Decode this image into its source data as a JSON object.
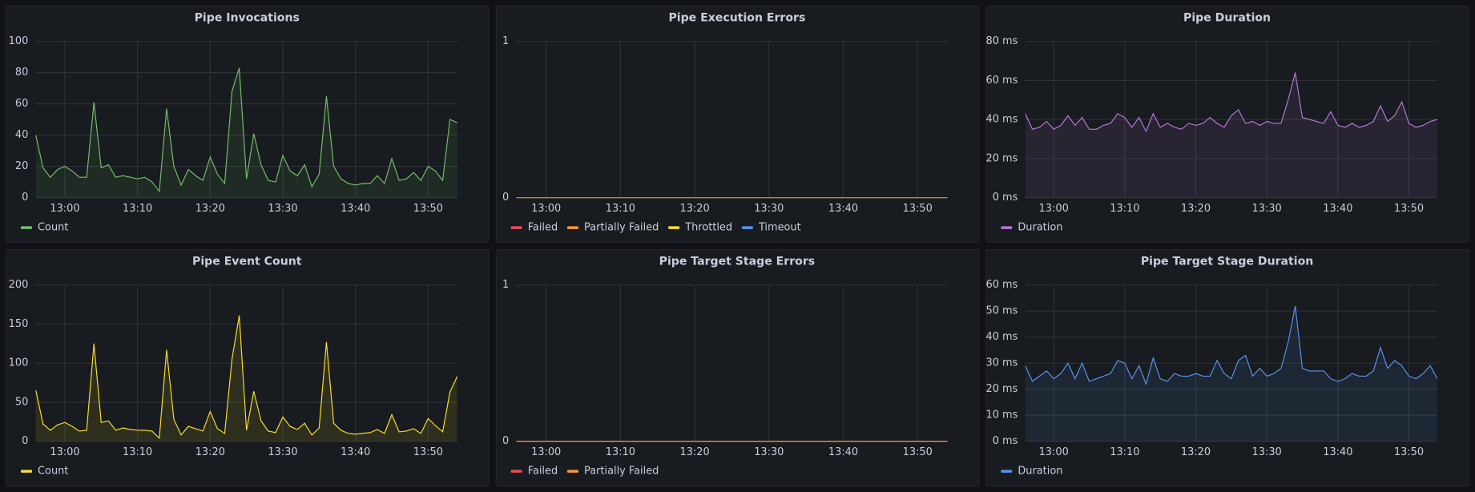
{
  "chart_data": [
    {
      "type": "line",
      "title": "Pipe Invocations",
      "x": [
        "12:56",
        "12:57",
        "12:58",
        "12:59",
        "13:00",
        "13:01",
        "13:02",
        "13:03",
        "13:04",
        "13:05",
        "13:06",
        "13:07",
        "13:08",
        "13:09",
        "13:10",
        "13:11",
        "13:12",
        "13:13",
        "13:14",
        "13:15",
        "13:16",
        "13:17",
        "13:18",
        "13:19",
        "13:20",
        "13:21",
        "13:22",
        "13:23",
        "13:24",
        "13:25",
        "13:26",
        "13:27",
        "13:28",
        "13:29",
        "13:30",
        "13:31",
        "13:32",
        "13:33",
        "13:34",
        "13:35",
        "13:36",
        "13:37",
        "13:38",
        "13:39",
        "13:40",
        "13:41",
        "13:42",
        "13:43",
        "13:44",
        "13:45",
        "13:46",
        "13:47",
        "13:48",
        "13:49",
        "13:50",
        "13:51",
        "13:52",
        "13:53",
        "13:54"
      ],
      "xlim": [
        "12:56",
        "13:54"
      ],
      "xticks": [
        "13:00",
        "13:10",
        "13:20",
        "13:30",
        "13:40",
        "13:50"
      ],
      "ylim": [
        0,
        100
      ],
      "yticks": [
        0,
        20,
        40,
        60,
        80,
        100
      ],
      "grid": true,
      "legend": "bottom-left",
      "series": [
        {
          "name": "Count",
          "color": "#73bf69",
          "values": [
            40,
            19,
            13,
            18,
            20,
            17,
            13,
            13,
            61,
            19,
            21,
            13,
            14,
            13,
            12,
            13,
            10,
            4,
            57,
            20,
            8,
            18,
            14,
            11,
            26,
            15,
            9,
            68,
            83,
            12,
            41,
            21,
            11,
            10,
            27,
            17,
            14,
            21,
            7,
            15,
            65,
            20,
            12,
            9,
            8,
            9,
            9,
            14,
            9,
            25,
            11,
            12,
            16,
            11,
            20,
            17,
            11,
            50,
            48
          ]
        }
      ]
    },
    {
      "type": "line",
      "title": "Pipe Execution Errors",
      "x": [
        "12:56",
        "12:57",
        "12:58",
        "12:59",
        "13:00",
        "13:01",
        "13:02",
        "13:03",
        "13:04",
        "13:05",
        "13:06",
        "13:07",
        "13:08",
        "13:09",
        "13:10",
        "13:11",
        "13:12",
        "13:13",
        "13:14",
        "13:15",
        "13:16",
        "13:17",
        "13:18",
        "13:19",
        "13:20",
        "13:21",
        "13:22",
        "13:23",
        "13:24",
        "13:25",
        "13:26",
        "13:27",
        "13:28",
        "13:29",
        "13:30",
        "13:31",
        "13:32",
        "13:33",
        "13:34",
        "13:35",
        "13:36",
        "13:37",
        "13:38",
        "13:39",
        "13:40",
        "13:41",
        "13:42",
        "13:43",
        "13:44",
        "13:45",
        "13:46",
        "13:47",
        "13:48",
        "13:49",
        "13:50",
        "13:51",
        "13:52",
        "13:53",
        "13:54"
      ],
      "xlim": [
        "12:56",
        "13:54"
      ],
      "xticks": [
        "13:00",
        "13:10",
        "13:20",
        "13:30",
        "13:40",
        "13:50"
      ],
      "ylim": [
        0,
        1
      ],
      "yticks": [
        0,
        1
      ],
      "grid": true,
      "legend": "bottom-left",
      "series": [
        {
          "name": "Failed",
          "color": "#f2495c",
          "values": [
            0,
            0,
            0,
            0,
            0,
            0,
            0,
            0,
            0,
            0,
            0,
            0,
            0,
            0,
            0,
            0,
            0,
            0,
            0,
            0,
            0,
            0,
            0,
            0,
            0,
            0,
            0,
            0,
            0,
            0,
            0,
            0,
            0,
            0,
            0,
            0,
            0,
            0,
            0,
            0,
            0,
            0,
            0,
            0,
            0,
            0,
            0,
            0,
            0,
            0,
            0,
            0,
            0,
            0,
            0,
            0,
            0,
            0,
            0
          ]
        },
        {
          "name": "Partially Failed",
          "color": "#ff9830",
          "values": [
            0,
            0,
            0,
            0,
            0,
            0,
            0,
            0,
            0,
            0,
            0,
            0,
            0,
            0,
            0,
            0,
            0,
            0,
            0,
            0,
            0,
            0,
            0,
            0,
            0,
            0,
            0,
            0,
            0,
            0,
            0,
            0,
            0,
            0,
            0,
            0,
            0,
            0,
            0,
            0,
            0,
            0,
            0,
            0,
            0,
            0,
            0,
            0,
            0,
            0,
            0,
            0,
            0,
            0,
            0,
            0,
            0,
            0,
            0
          ]
        },
        {
          "name": "Throttled",
          "color": "#fade2a",
          "values": [
            0,
            0,
            0,
            0,
            0,
            0,
            0,
            0,
            0,
            0,
            0,
            0,
            0,
            0,
            0,
            0,
            0,
            0,
            0,
            0,
            0,
            0,
            0,
            0,
            0,
            0,
            0,
            0,
            0,
            0,
            0,
            0,
            0,
            0,
            0,
            0,
            0,
            0,
            0,
            0,
            0,
            0,
            0,
            0,
            0,
            0,
            0,
            0,
            0,
            0,
            0,
            0,
            0,
            0,
            0,
            0,
            0,
            0,
            0
          ]
        },
        {
          "name": "Timeout",
          "color": "#5794f2",
          "values": [
            0,
            0,
            0,
            0,
            0,
            0,
            0,
            0,
            0,
            0,
            0,
            0,
            0,
            0,
            0,
            0,
            0,
            0,
            0,
            0,
            0,
            0,
            0,
            0,
            0,
            0,
            0,
            0,
            0,
            0,
            0,
            0,
            0,
            0,
            0,
            0,
            0,
            0,
            0,
            0,
            0,
            0,
            0,
            0,
            0,
            0,
            0,
            0,
            0,
            0,
            0,
            0,
            0,
            0,
            0,
            0,
            0,
            0,
            0
          ]
        }
      ]
    },
    {
      "type": "line",
      "title": "Pipe Duration",
      "x": [
        "12:56",
        "12:57",
        "12:58",
        "12:59",
        "13:00",
        "13:01",
        "13:02",
        "13:03",
        "13:04",
        "13:05",
        "13:06",
        "13:07",
        "13:08",
        "13:09",
        "13:10",
        "13:11",
        "13:12",
        "13:13",
        "13:14",
        "13:15",
        "13:16",
        "13:17",
        "13:18",
        "13:19",
        "13:20",
        "13:21",
        "13:22",
        "13:23",
        "13:24",
        "13:25",
        "13:26",
        "13:27",
        "13:28",
        "13:29",
        "13:30",
        "13:31",
        "13:32",
        "13:33",
        "13:34",
        "13:35",
        "13:36",
        "13:37",
        "13:38",
        "13:39",
        "13:40",
        "13:41",
        "13:42",
        "13:43",
        "13:44",
        "13:45",
        "13:46",
        "13:47",
        "13:48",
        "13:49",
        "13:50",
        "13:51",
        "13:52",
        "13:53",
        "13:54"
      ],
      "xlim": [
        "12:56",
        "13:54"
      ],
      "xticks": [
        "13:00",
        "13:10",
        "13:20",
        "13:30",
        "13:40",
        "13:50"
      ],
      "ylim": [
        0,
        80
      ],
      "yticks": [
        {
          "value": 0,
          "label": "0 ms"
        },
        {
          "value": 20,
          "label": "20 ms"
        },
        {
          "value": 40,
          "label": "40 ms"
        },
        {
          "value": 60,
          "label": "60 ms"
        },
        {
          "value": 80,
          "label": "80 ms"
        }
      ],
      "grid": true,
      "legend": "bottom-left",
      "series": [
        {
          "name": "Duration",
          "color": "#b877d9",
          "values": [
            43,
            35,
            36,
            39,
            35,
            37,
            42,
            37,
            41,
            35,
            35,
            37,
            38,
            43,
            41,
            36,
            41,
            34,
            43,
            36,
            38,
            36,
            35,
            38,
            37,
            38,
            41,
            38,
            36,
            42,
            45,
            38,
            39,
            37,
            39,
            38,
            38,
            50,
            64,
            41,
            40,
            39,
            38,
            44,
            37,
            36,
            38,
            36,
            37,
            39,
            47,
            39,
            42,
            49,
            38,
            36,
            37,
            39,
            40
          ]
        }
      ]
    },
    {
      "type": "line",
      "title": "Pipe Event Count",
      "x": [
        "12:56",
        "12:57",
        "12:58",
        "12:59",
        "13:00",
        "13:01",
        "13:02",
        "13:03",
        "13:04",
        "13:05",
        "13:06",
        "13:07",
        "13:08",
        "13:09",
        "13:10",
        "13:11",
        "13:12",
        "13:13",
        "13:14",
        "13:15",
        "13:16",
        "13:17",
        "13:18",
        "13:19",
        "13:20",
        "13:21",
        "13:22",
        "13:23",
        "13:24",
        "13:25",
        "13:26",
        "13:27",
        "13:28",
        "13:29",
        "13:30",
        "13:31",
        "13:32",
        "13:33",
        "13:34",
        "13:35",
        "13:36",
        "13:37",
        "13:38",
        "13:39",
        "13:40",
        "13:41",
        "13:42",
        "13:43",
        "13:44",
        "13:45",
        "13:46",
        "13:47",
        "13:48",
        "13:49",
        "13:50",
        "13:51",
        "13:52",
        "13:53",
        "13:54"
      ],
      "xlim": [
        "12:56",
        "13:54"
      ],
      "xticks": [
        "13:00",
        "13:10",
        "13:20",
        "13:30",
        "13:40",
        "13:50"
      ],
      "ylim": [
        0,
        200
      ],
      "yticks": [
        0,
        50,
        100,
        150,
        200
      ],
      "grid": true,
      "legend": "bottom-left",
      "series": [
        {
          "name": "Count",
          "color": "#fade2a",
          "values": [
            65,
            22,
            14,
            21,
            24,
            19,
            13,
            14,
            125,
            24,
            26,
            14,
            17,
            15,
            14,
            14,
            13,
            4,
            117,
            28,
            8,
            19,
            16,
            13,
            38,
            16,
            10,
            105,
            161,
            14,
            64,
            26,
            13,
            11,
            31,
            19,
            15,
            23,
            8,
            17,
            127,
            23,
            14,
            10,
            9,
            10,
            11,
            15,
            10,
            34,
            12,
            13,
            16,
            10,
            29,
            20,
            12,
            63,
            83
          ]
        }
      ]
    },
    {
      "type": "line",
      "title": "Pipe Target Stage Errors",
      "x": [
        "12:56",
        "12:57",
        "12:58",
        "12:59",
        "13:00",
        "13:01",
        "13:02",
        "13:03",
        "13:04",
        "13:05",
        "13:06",
        "13:07",
        "13:08",
        "13:09",
        "13:10",
        "13:11",
        "13:12",
        "13:13",
        "13:14",
        "13:15",
        "13:16",
        "13:17",
        "13:18",
        "13:19",
        "13:20",
        "13:21",
        "13:22",
        "13:23",
        "13:24",
        "13:25",
        "13:26",
        "13:27",
        "13:28",
        "13:29",
        "13:30",
        "13:31",
        "13:32",
        "13:33",
        "13:34",
        "13:35",
        "13:36",
        "13:37",
        "13:38",
        "13:39",
        "13:40",
        "13:41",
        "13:42",
        "13:43",
        "13:44",
        "13:45",
        "13:46",
        "13:47",
        "13:48",
        "13:49",
        "13:50",
        "13:51",
        "13:52",
        "13:53",
        "13:54"
      ],
      "xlim": [
        "12:56",
        "13:54"
      ],
      "xticks": [
        "13:00",
        "13:10",
        "13:20",
        "13:30",
        "13:40",
        "13:50"
      ],
      "ylim": [
        0,
        1
      ],
      "yticks": [
        0,
        1
      ],
      "grid": true,
      "legend": "bottom-left",
      "series": [
        {
          "name": "Failed",
          "color": "#f2495c",
          "values": [
            0,
            0,
            0,
            0,
            0,
            0,
            0,
            0,
            0,
            0,
            0,
            0,
            0,
            0,
            0,
            0,
            0,
            0,
            0,
            0,
            0,
            0,
            0,
            0,
            0,
            0,
            0,
            0,
            0,
            0,
            0,
            0,
            0,
            0,
            0,
            0,
            0,
            0,
            0,
            0,
            0,
            0,
            0,
            0,
            0,
            0,
            0,
            0,
            0,
            0,
            0,
            0,
            0,
            0,
            0,
            0,
            0,
            0,
            0
          ]
        },
        {
          "name": "Partially Failed",
          "color": "#ff9830",
          "values": [
            0,
            0,
            0,
            0,
            0,
            0,
            0,
            0,
            0,
            0,
            0,
            0,
            0,
            0,
            0,
            0,
            0,
            0,
            0,
            0,
            0,
            0,
            0,
            0,
            0,
            0,
            0,
            0,
            0,
            0,
            0,
            0,
            0,
            0,
            0,
            0,
            0,
            0,
            0,
            0,
            0,
            0,
            0,
            0,
            0,
            0,
            0,
            0,
            0,
            0,
            0,
            0,
            0,
            0,
            0,
            0,
            0,
            0,
            0
          ]
        }
      ]
    },
    {
      "type": "line",
      "title": "Pipe Target Stage Duration",
      "x": [
        "12:56",
        "12:57",
        "12:58",
        "12:59",
        "13:00",
        "13:01",
        "13:02",
        "13:03",
        "13:04",
        "13:05",
        "13:06",
        "13:07",
        "13:08",
        "13:09",
        "13:10",
        "13:11",
        "13:12",
        "13:13",
        "13:14",
        "13:15",
        "13:16",
        "13:17",
        "13:18",
        "13:19",
        "13:20",
        "13:21",
        "13:22",
        "13:23",
        "13:24",
        "13:25",
        "13:26",
        "13:27",
        "13:28",
        "13:29",
        "13:30",
        "13:31",
        "13:32",
        "13:33",
        "13:34",
        "13:35",
        "13:36",
        "13:37",
        "13:38",
        "13:39",
        "13:40",
        "13:41",
        "13:42",
        "13:43",
        "13:44",
        "13:45",
        "13:46",
        "13:47",
        "13:48",
        "13:49",
        "13:50",
        "13:51",
        "13:52",
        "13:53",
        "13:54"
      ],
      "xlim": [
        "12:56",
        "13:54"
      ],
      "xticks": [
        "13:00",
        "13:10",
        "13:20",
        "13:30",
        "13:40",
        "13:50"
      ],
      "ylim": [
        0,
        60
      ],
      "yticks": [
        {
          "value": 0,
          "label": "0 ms"
        },
        {
          "value": 10,
          "label": "10 ms"
        },
        {
          "value": 20,
          "label": "20 ms"
        },
        {
          "value": 30,
          "label": "30 ms"
        },
        {
          "value": 40,
          "label": "40 ms"
        },
        {
          "value": 50,
          "label": "50 ms"
        },
        {
          "value": 60,
          "label": "60 ms"
        }
      ],
      "grid": true,
      "legend": "bottom-left",
      "series": [
        {
          "name": "Duration",
          "color": "#5794f2",
          "values": [
            29,
            23,
            25,
            27,
            24,
            26,
            30,
            24,
            30,
            23,
            24,
            25,
            26,
            31,
            30,
            24,
            29,
            22,
            32,
            24,
            23,
            26,
            25,
            25,
            26,
            25,
            25,
            31,
            26,
            24,
            31,
            33,
            25,
            28,
            25,
            26,
            28,
            38,
            52,
            28,
            27,
            27,
            27,
            24,
            23,
            24,
            26,
            25,
            25,
            27,
            36,
            28,
            31,
            29,
            25,
            24,
            26,
            29,
            24
          ]
        }
      ]
    }
  ]
}
